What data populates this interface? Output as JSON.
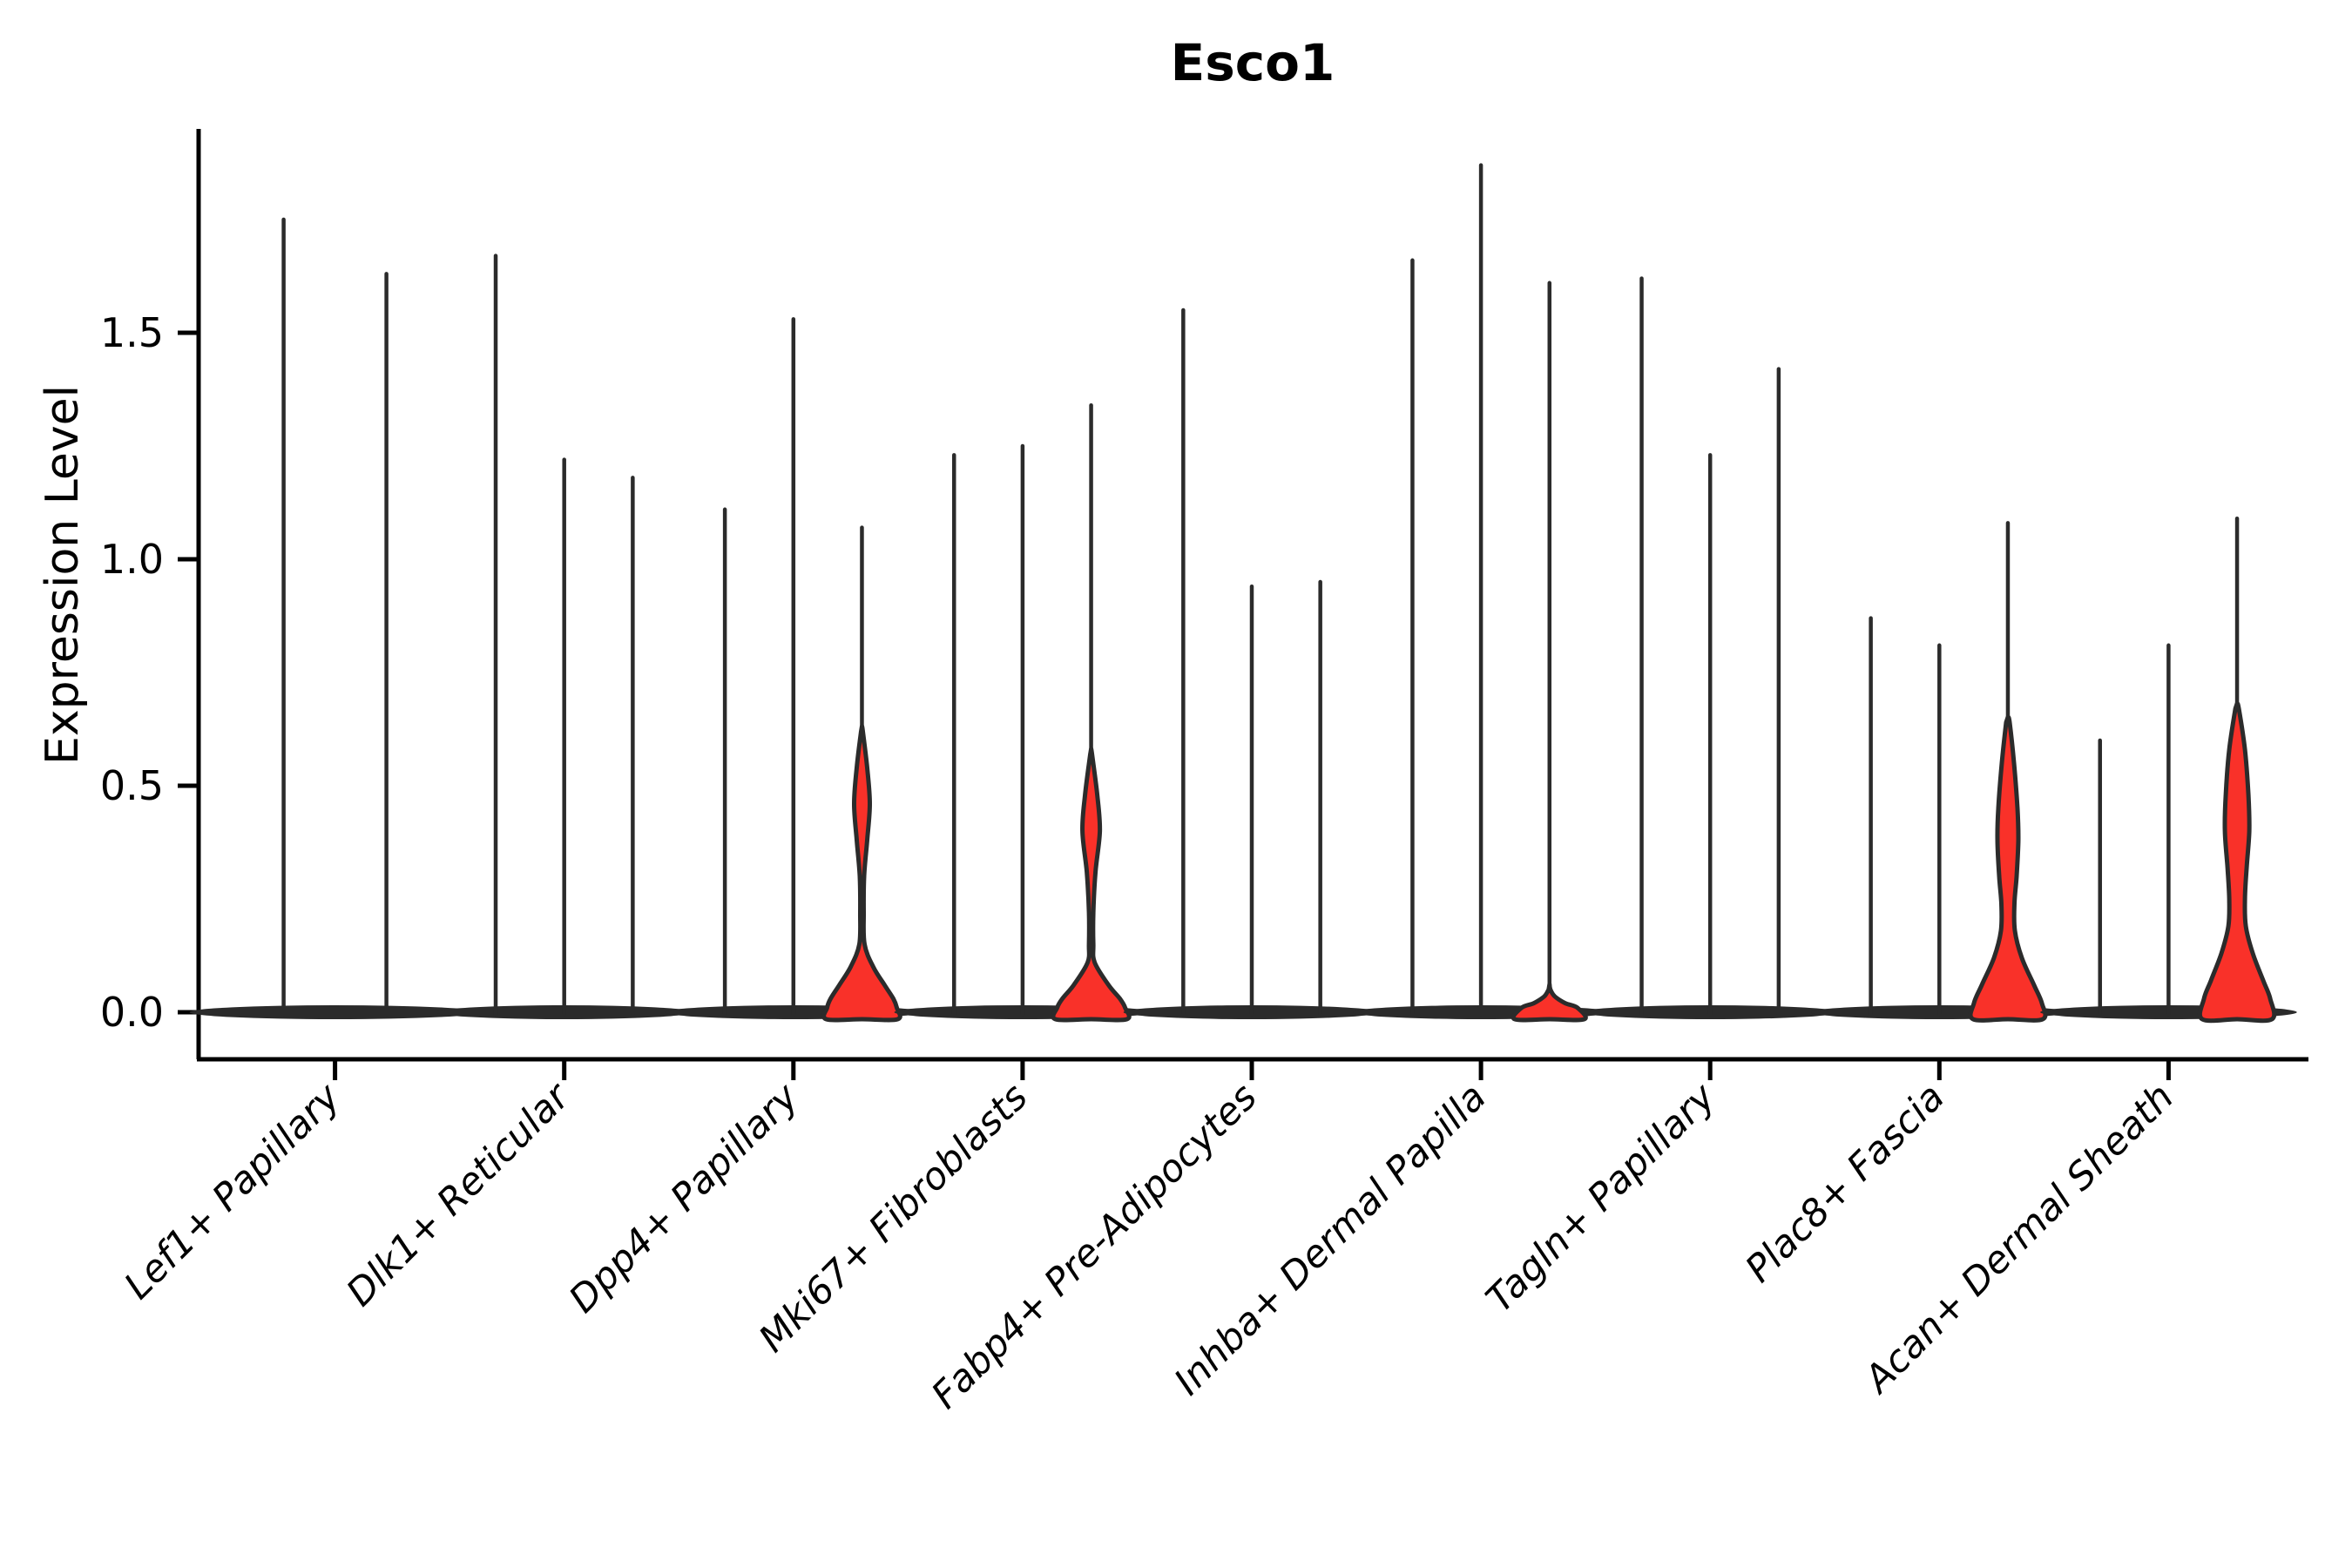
{
  "chart_data": {
    "type": "violin",
    "title": "Esco1",
    "ylabel": "Expression Level",
    "xlabel": "",
    "ytick_labels": [
      "0.0",
      "0.5",
      "1.0",
      "1.5"
    ],
    "ytick_values": [
      0.0,
      0.5,
      1.0,
      1.5
    ],
    "ylim": [
      -0.1,
      1.95
    ],
    "grid": "off",
    "legend": "none",
    "categories": [
      "Lef1+ Papillary",
      "Dlk1+ Reticular",
      "Dpp4+ Papillary",
      "Mki67+ Fibroblasts",
      "Fabp4+ Pre-Adipocytes",
      "Inhba+ Dermal Papilla",
      "Tagln+ Papillary",
      "Plac8+ Fascia",
      "Acan+ Dermal Sheath"
    ],
    "groups": [
      {
        "label": "Lef1+ Papillary",
        "violins": [
          {
            "max": 1.75
          },
          {
            "max": 1.63
          }
        ]
      },
      {
        "label": "Dlk1+ Reticular",
        "violins": [
          {
            "max": 1.67
          },
          {
            "max": 1.22
          },
          {
            "max": 1.18
          }
        ]
      },
      {
        "label": "Dpp4+ Papillary",
        "violins": [
          {
            "max": 1.11
          },
          {
            "max": 1.53
          },
          {
            "max": 1.07,
            "body": [
              [
                0.62,
                1
              ],
              [
                0.54,
                6
              ],
              [
                0.46,
                9
              ],
              [
                0.38,
                6
              ],
              [
                0.3,
                2.5
              ],
              [
                0.22,
                2
              ],
              [
                0.15,
                3
              ],
              [
                0.1,
                13
              ],
              [
                0.06,
                26
              ],
              [
                0.03,
                36
              ],
              [
                0.01,
                40
              ],
              [
                0,
                41
              ]
            ]
          }
        ]
      },
      {
        "label": "Mki67+ Fibroblasts",
        "violins": [
          {
            "max": 1.23
          },
          {
            "max": 1.25
          },
          {
            "max": 1.34,
            "body": [
              [
                0.57,
                1
              ],
              [
                0.48,
                7
              ],
              [
                0.4,
                10
              ],
              [
                0.31,
                5
              ],
              [
                0.22,
                2.5
              ],
              [
                0.15,
                2.5
              ],
              [
                0.11,
                4
              ],
              [
                0.06,
                20
              ],
              [
                0.03,
                33
              ],
              [
                0.01,
                39
              ],
              [
                0,
                41
              ]
            ]
          }
        ]
      },
      {
        "label": "Fabp4+ Pre-Adipocytes",
        "violins": [
          {
            "max": 1.55
          },
          {
            "max": 0.94
          },
          {
            "max": 0.95
          }
        ]
      },
      {
        "label": "Inhba+ Dermal Papilla",
        "violins": [
          {
            "max": 1.66
          },
          {
            "max": 1.87
          },
          {
            "max": 1.61,
            "body": [
              [
                0.05,
                1
              ],
              [
                0.035,
                6
              ],
              [
                0.02,
                18
              ],
              [
                0.01,
                32
              ],
              [
                0,
                40
              ]
            ]
          }
        ]
      },
      {
        "label": "Tagln+ Papillary",
        "violins": [
          {
            "max": 1.62
          },
          {
            "max": 1.23
          },
          {
            "max": 1.42
          }
        ]
      },
      {
        "label": "Plac8+ Fascia",
        "violins": [
          {
            "max": 0.87
          },
          {
            "max": 0.81
          },
          {
            "max": 1.08,
            "body": [
              [
                0.64,
                2
              ],
              [
                0.55,
                7
              ],
              [
                0.45,
                11
              ],
              [
                0.38,
                12
              ],
              [
                0.3,
                10
              ],
              [
                0.24,
                7.5
              ],
              [
                0.18,
                8
              ],
              [
                0.12,
                16
              ],
              [
                0.06,
                30
              ],
              [
                0.02,
                39
              ],
              [
                0,
                40
              ]
            ]
          }
        ]
      },
      {
        "label": "Acan+ Dermal Sheath",
        "violins": [
          {
            "max": 0.6
          },
          {
            "max": 0.81
          },
          {
            "max": 1.09,
            "body": [
              [
                0.67,
                2
              ],
              [
                0.58,
                9
              ],
              [
                0.48,
                13
              ],
              [
                0.4,
                14
              ],
              [
                0.32,
                11
              ],
              [
                0.25,
                9
              ],
              [
                0.19,
                10
              ],
              [
                0.13,
                18
              ],
              [
                0.07,
                30
              ],
              [
                0.03,
                38
              ],
              [
                0,
                40
              ]
            ]
          }
        ]
      }
    ],
    "colors": {
      "violin_fill": "#f93129",
      "violin_outline": "#2b2b2b",
      "axis": "#000000",
      "text": "#000000",
      "background": "#ffffff"
    }
  }
}
